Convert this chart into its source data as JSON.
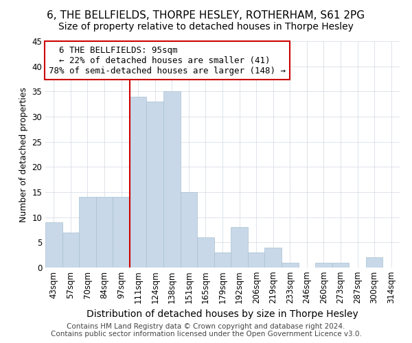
{
  "title": "6, THE BELLFIELDS, THORPE HESLEY, ROTHERHAM, S61 2PG",
  "subtitle": "Size of property relative to detached houses in Thorpe Hesley",
  "xlabel": "Distribution of detached houses by size in Thorpe Hesley",
  "ylabel": "Number of detached properties",
  "footer_line1": "Contains HM Land Registry data © Crown copyright and database right 2024.",
  "footer_line2": "Contains public sector information licensed under the Open Government Licence v3.0.",
  "bar_labels": [
    "43sqm",
    "57sqm",
    "70sqm",
    "84sqm",
    "97sqm",
    "111sqm",
    "124sqm",
    "138sqm",
    "151sqm",
    "165sqm",
    "179sqm",
    "192sqm",
    "206sqm",
    "219sqm",
    "233sqm",
    "246sqm",
    "260sqm",
    "273sqm",
    "287sqm",
    "300sqm",
    "314sqm"
  ],
  "bar_values": [
    9,
    7,
    14,
    14,
    14,
    34,
    33,
    35,
    15,
    6,
    3,
    8,
    3,
    4,
    1,
    0,
    1,
    1,
    0,
    2,
    0
  ],
  "bar_color": "#c8d8e8",
  "bar_edge_color": "#a8c0d0",
  "vline_index": 4,
  "vline_color": "#cc0000",
  "annotation_title": "6 THE BELLFIELDS: 95sqm",
  "annotation_line1": "← 22% of detached houses are smaller (41)",
  "annotation_line2": "78% of semi-detached houses are larger (148) →",
  "annotation_box_color": "#ffffff",
  "annotation_box_edge": "#cc0000",
  "ylim": [
    0,
    45
  ],
  "yticks": [
    0,
    5,
    10,
    15,
    20,
    25,
    30,
    35,
    40,
    45
  ],
  "title_fontsize": 11,
  "subtitle_fontsize": 10,
  "xlabel_fontsize": 10,
  "ylabel_fontsize": 9,
  "tick_fontsize": 8.5,
  "annotation_fontsize": 9,
  "footer_fontsize": 7.5
}
